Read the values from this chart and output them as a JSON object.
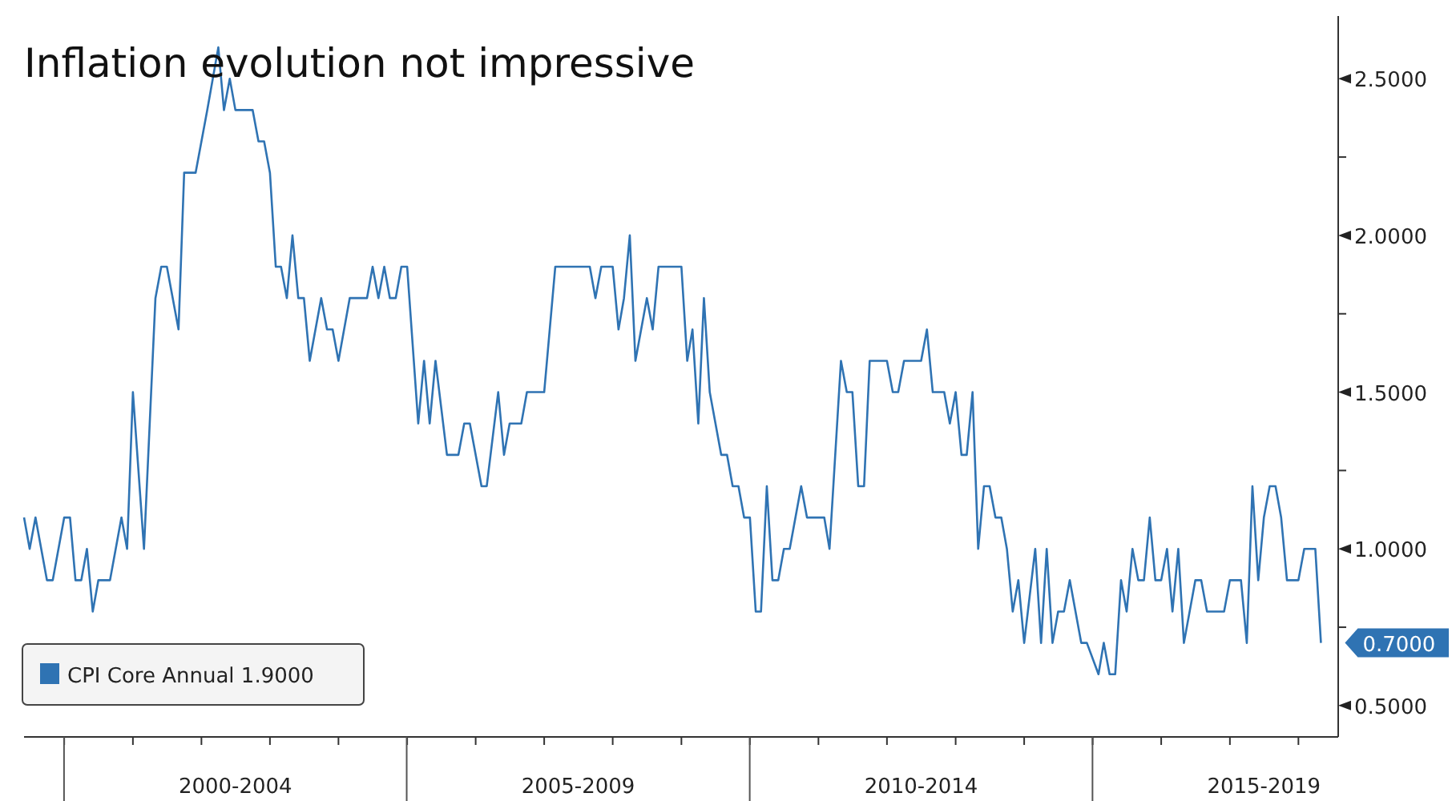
{
  "chart_data": {
    "type": "line",
    "title": "Inflation evolution not impressive",
    "x": [
      "1999-06",
      "1999-07",
      "1999-08",
      "1999-10",
      "1999-11",
      "2000-01",
      "2000-02",
      "2000-03",
      "2000-04",
      "2000-05",
      "2000-06",
      "2000-07",
      "2000-09",
      "2000-11",
      "2000-12",
      "2001-01",
      "2001-03",
      "2001-05",
      "2001-06",
      "2001-07",
      "2001-09",
      "2001-10",
      "2001-12",
      "2002-02",
      "2002-04",
      "2002-05",
      "2002-06",
      "2002-07",
      "2002-10",
      "2002-11",
      "2002-12",
      "2003-01",
      "2003-02",
      "2003-03",
      "2003-04",
      "2003-05",
      "2003-06",
      "2003-07",
      "2003-08",
      "2003-10",
      "2003-11",
      "2003-12",
      "2004-01",
      "2004-03",
      "2004-06",
      "2004-07",
      "2004-08",
      "2004-09",
      "2004-10",
      "2004-11",
      "2004-12",
      "2005-01",
      "2005-03",
      "2005-04",
      "2005-05",
      "2005-06",
      "2005-08",
      "2005-10",
      "2005-11",
      "2005-12",
      "2006-02",
      "2006-03",
      "2006-05",
      "2006-06",
      "2006-07",
      "2006-09",
      "2006-10",
      "2007-01",
      "2007-03",
      "2007-09",
      "2007-10",
      "2007-11",
      "2008-01",
      "2008-02",
      "2008-03",
      "2008-04",
      "2008-05",
      "2008-07",
      "2008-08",
      "2008-09",
      "2009-01",
      "2009-02",
      "2009-03",
      "2009-04",
      "2009-05",
      "2009-06",
      "2009-08",
      "2009-09",
      "2009-10",
      "2009-11",
      "2009-12",
      "2010-01",
      "2010-02",
      "2010-03",
      "2010-04",
      "2010-05",
      "2010-06",
      "2010-07",
      "2010-08",
      "2010-10",
      "2010-11",
      "2011-02",
      "2011-03",
      "2011-05",
      "2011-06",
      "2011-07",
      "2011-08",
      "2011-09",
      "2011-10",
      "2012-01",
      "2012-02",
      "2012-03",
      "2012-04",
      "2012-07",
      "2012-08",
      "2012-09",
      "2012-11",
      "2012-12",
      "2013-01",
      "2013-02",
      "2013-03",
      "2013-04",
      "2013-05",
      "2013-06",
      "2013-07",
      "2013-08",
      "2013-09",
      "2013-10",
      "2013-11",
      "2013-12",
      "2014-01",
      "2014-03",
      "2014-04",
      "2014-05",
      "2014-06",
      "2014-07",
      "2014-08",
      "2014-09",
      "2014-11",
      "2014-12",
      "2015-02",
      "2015-03",
      "2015-04",
      "2015-05",
      "2015-06",
      "2015-07",
      "2015-08",
      "2015-09",
      "2015-10",
      "2015-11",
      "2015-12",
      "2016-01",
      "2016-02",
      "2016-03",
      "2016-04",
      "2016-05",
      "2016-07",
      "2016-08",
      "2016-09",
      "2016-12",
      "2017-01",
      "2017-03",
      "2017-04",
      "2017-05",
      "2017-06",
      "2017-07",
      "2017-08",
      "2017-09",
      "2017-10",
      "2017-11",
      "2018-01",
      "2018-02",
      "2018-04",
      "2018-05"
    ],
    "series": [
      {
        "name": "CPI Core Annual 1.9000",
        "color": "#2f73b3",
        "values": [
          1.1,
          1.0,
          1.1,
          0.9,
          0.9,
          1.1,
          1.1,
          0.9,
          0.9,
          1.0,
          0.8,
          0.9,
          0.9,
          1.1,
          1.0,
          1.5,
          1.0,
          1.8,
          1.9,
          1.9,
          1.7,
          2.2,
          2.2,
          2.4,
          2.6,
          2.4,
          2.5,
          2.4,
          2.4,
          2.3,
          2.3,
          2.2,
          1.9,
          1.9,
          1.8,
          2.0,
          1.8,
          1.8,
          1.6,
          1.8,
          1.7,
          1.7,
          1.6,
          1.8,
          1.8,
          1.9,
          1.8,
          1.9,
          1.8,
          1.8,
          1.9,
          1.9,
          1.4,
          1.6,
          1.4,
          1.6,
          1.3,
          1.3,
          1.4,
          1.4,
          1.2,
          1.2,
          1.5,
          1.3,
          1.4,
          1.4,
          1.5,
          1.5,
          1.9,
          1.9,
          1.8,
          1.9,
          1.9,
          1.7,
          1.8,
          2.0,
          1.6,
          1.8,
          1.7,
          1.9,
          1.9,
          1.6,
          1.7,
          1.4,
          1.8,
          1.5,
          1.3,
          1.3,
          1.2,
          1.2,
          1.1,
          1.1,
          0.8,
          0.8,
          1.2,
          0.9,
          0.9,
          1.0,
          1.0,
          1.2,
          1.1,
          1.1,
          1.0,
          1.6,
          1.5,
          1.5,
          1.2,
          1.2,
          1.6,
          1.6,
          1.5,
          1.5,
          1.6,
          1.6,
          1.7,
          1.5,
          1.5,
          1.4,
          1.5,
          1.3,
          1.3,
          1.5,
          1.0,
          1.2,
          1.2,
          1.1,
          1.1,
          1.0,
          0.8,
          0.9,
          0.7,
          1.0,
          0.7,
          1.0,
          0.7,
          0.8,
          0.8,
          0.9,
          0.7,
          0.7,
          0.6,
          0.7,
          0.6,
          0.6,
          0.9,
          0.8,
          1.0,
          0.9,
          0.9,
          1.1,
          0.9,
          0.9,
          1.0,
          0.8,
          1.0,
          0.7,
          0.9,
          0.9,
          0.8,
          0.8,
          0.9,
          0.9,
          0.7,
          1.2,
          0.9,
          1.1,
          1.2,
          1.2,
          1.1,
          0.9,
          0.9,
          1.0,
          1.0,
          0.7
        ]
      }
    ],
    "xlim": [
      "1999-06",
      "2018-08"
    ],
    "xticks": [
      {
        "value": "2000-01",
        "label": null
      },
      {
        "value": "2001-01",
        "label": null
      },
      {
        "value": "2002-01",
        "label": null
      },
      {
        "value": "2002-07",
        "label": "2000-2004"
      },
      {
        "value": "2003-01",
        "label": null
      },
      {
        "value": "2004-01",
        "label": null
      },
      {
        "value": "2005-01",
        "label": null
      },
      {
        "value": "2006-01",
        "label": null
      },
      {
        "value": "2007-01",
        "label": null
      },
      {
        "value": "2007-07",
        "label": "2005-2009"
      },
      {
        "value": "2008-01",
        "label": null
      },
      {
        "value": "2009-01",
        "label": null
      },
      {
        "value": "2010-01",
        "label": null
      },
      {
        "value": "2011-01",
        "label": null
      },
      {
        "value": "2012-01",
        "label": null
      },
      {
        "value": "2012-07",
        "label": "2010-2014"
      },
      {
        "value": "2013-01",
        "label": null
      },
      {
        "value": "2014-01",
        "label": null
      },
      {
        "value": "2015-01",
        "label": null
      },
      {
        "value": "2016-01",
        "label": null
      },
      {
        "value": "2017-01",
        "label": null
      },
      {
        "value": "2017-07",
        "label": "2015-2019"
      },
      {
        "value": "2018-01",
        "label": null
      }
    ],
    "ylim": [
      0.4,
      2.7
    ],
    "yticks": [
      {
        "value": 0.5,
        "label": "0.5000"
      },
      {
        "value": 0.75,
        "label": null
      },
      {
        "value": 1.0,
        "label": "1.0000"
      },
      {
        "value": 1.25,
        "label": null
      },
      {
        "value": 1.5,
        "label": "1.5000"
      },
      {
        "value": 1.75,
        "label": null
      },
      {
        "value": 2.0,
        "label": "2.0000"
      },
      {
        "value": 2.25,
        "label": null
      },
      {
        "value": 2.5,
        "label": "2.5000"
      }
    ],
    "annotations": [
      {
        "text": "0.7000",
        "x": "2018-05",
        "y": 0.7
      }
    ],
    "legend": "bottom left",
    "grid": false
  }
}
